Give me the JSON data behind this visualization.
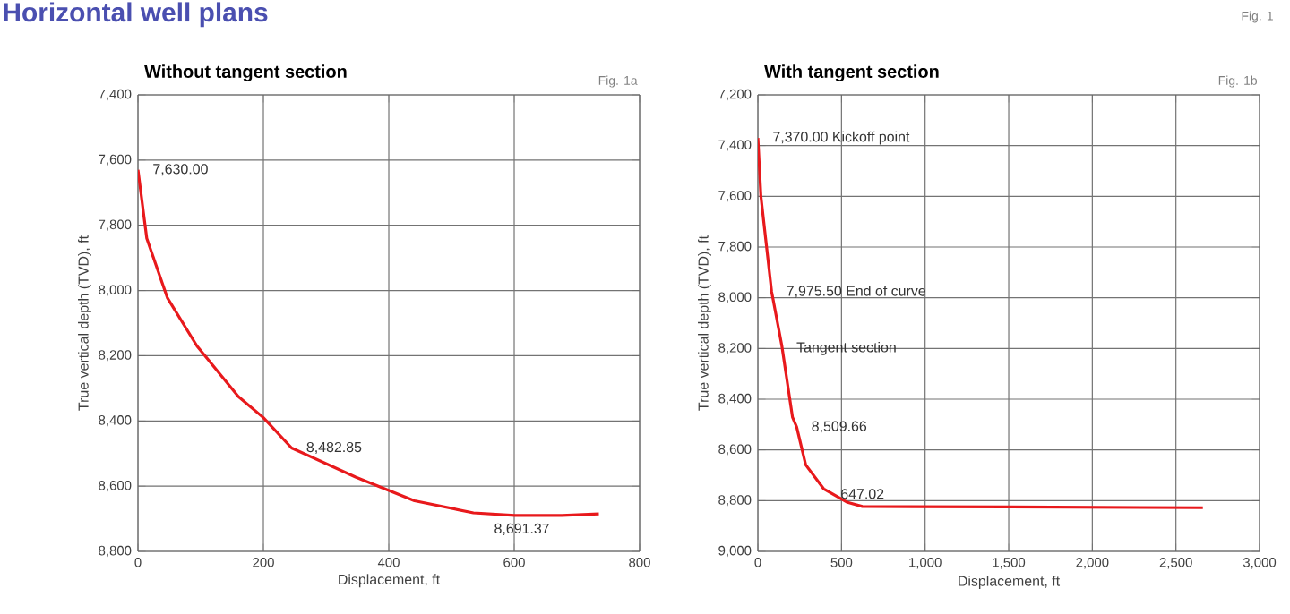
{
  "chart_data": [
    {
      "type": "line",
      "title": "Without tangent section",
      "xlabel": "Displacement, ft",
      "ylabel": "True vertical depth (TVD), ft",
      "x": [
        0,
        14,
        47,
        94,
        160,
        200,
        245,
        347,
        441,
        535,
        601,
        676,
        735
      ],
      "series": [
        {
          "color": "#e8191c",
          "values": [
            7630,
            7840,
            8023,
            8170,
            8325,
            8390,
            8482.85,
            8572,
            8645,
            8682,
            8690,
            8690,
            8685
          ]
        }
      ],
      "xlim": [
        0,
        800
      ],
      "xticks": [
        0,
        200,
        400,
        600,
        800
      ],
      "ylim": [
        8800,
        7400
      ],
      "yticks": [
        {
          "value": 7400,
          "label": "7,400"
        },
        {
          "value": 7600,
          "label": "7,600"
        },
        {
          "value": 7800,
          "label": "7,800"
        },
        {
          "value": 8000,
          "label": "8,000"
        },
        {
          "value": 8200,
          "label": "8,200"
        },
        {
          "value": 8400,
          "label": "8,400"
        },
        {
          "value": 8600,
          "label": "8,600"
        },
        {
          "value": 8800,
          "label": "8,800"
        }
      ],
      "grid": true,
      "marker": "none",
      "line_style": "solid",
      "annotations": [
        "Horizontal well plans",
        "Fig. 1a",
        {
          "text": "7,630.00",
          "x": 0,
          "y": 7630
        },
        {
          "text": "8,482.85",
          "x": 245,
          "y": 8482.85
        },
        {
          "text": "8,691.37",
          "x": 660,
          "y": 8691.37
        }
      ]
    },
    {
      "type": "line",
      "title": "With tangent section",
      "xlabel": "Displacement, ft",
      "ylabel": "True vertical depth (TVD), ft",
      "x": [
        0,
        18,
        54,
        82,
        143,
        207,
        232,
        286,
        393,
        536,
        625,
        1500,
        2661
      ],
      "series": [
        {
          "color": "#e8191c",
          "values": [
            7370,
            7600,
            7812,
            7975.5,
            8188,
            8471,
            8509.66,
            8659,
            8753,
            8807,
            8823,
            8825,
            8828
          ]
        }
      ],
      "xlim": [
        0,
        3000
      ],
      "xticks": [
        0,
        500,
        {
          "value": 1000,
          "label": "1,000"
        },
        {
          "value": 1500,
          "label": "1,500"
        },
        {
          "value": 2000,
          "label": "2,000"
        },
        {
          "value": 2500,
          "label": "2,500"
        },
        {
          "value": 3000,
          "label": "3,000"
        }
      ],
      "ylim": [
        9000,
        7200
      ],
      "yticks": [
        {
          "value": 7200,
          "label": "7,200"
        },
        {
          "value": 7400,
          "label": "7,400"
        },
        {
          "value": 7600,
          "label": "7,600"
        },
        {
          "value": 7800,
          "label": "7,800"
        },
        {
          "value": 8000,
          "label": "8,000"
        },
        {
          "value": 8200,
          "label": "8,200"
        },
        {
          "value": 8400,
          "label": "8,400"
        },
        {
          "value": 8600,
          "label": "8,600"
        },
        {
          "value": 8800,
          "label": "8,800"
        },
        {
          "value": 9000,
          "label": "9,000"
        }
      ],
      "grid": true,
      "marker": "none",
      "line_style": "solid",
      "annotations": [
        "Fig. 1",
        "Fig. 1b",
        {
          "text": "7,370.00 Kickoff point",
          "x": 0,
          "y": 7370
        },
        {
          "text": "7,975.50 End of curve",
          "x": 82,
          "y": 7975.5
        },
        {
          "text": "Tangent section",
          "x": 143,
          "y": 8200
        },
        {
          "text": "8,509.66",
          "x": 232,
          "y": 8509.66
        },
        {
          "text": "647.02",
          "x": 625,
          "y": 8823
        }
      ]
    }
  ]
}
